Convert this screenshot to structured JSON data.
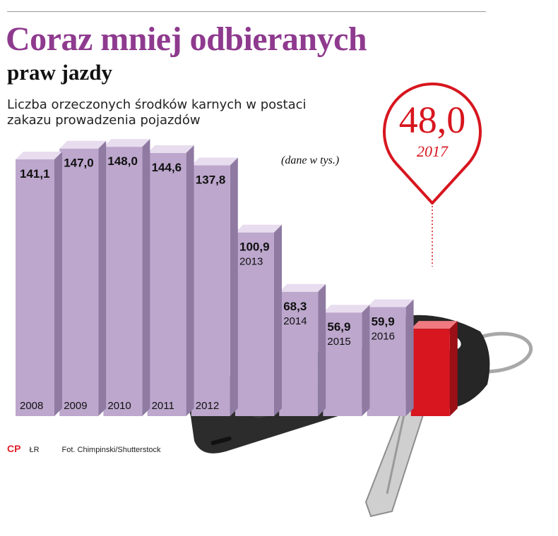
{
  "header": {
    "title": "Coraz mniej odbieranych",
    "subtitle": "praw jazdy",
    "description": "Liczba orzeczonych środków karnych w postaci zakazu prowadzenia pojazdów",
    "unit_note": "(dane w tys.)"
  },
  "highlight": {
    "value": "48,0",
    "year": "2017",
    "color": "#d7161f"
  },
  "footer": {
    "logo": "CP",
    "author": "ŁR",
    "photo_credit": "Fot. Chimpinski/Shutterstock"
  },
  "colors": {
    "bar_front": "#bda7cd",
    "bar_top": "#e8ddef",
    "bar_side": "#8f7aa2",
    "highlight": "#d7161f",
    "title": "#8e3a8e"
  },
  "chart_data": {
    "type": "bar",
    "categories": [
      "2008",
      "2009",
      "2010",
      "2011",
      "2012",
      "2013",
      "2014",
      "2015",
      "2016",
      "2017"
    ],
    "values": [
      141.1,
      147.0,
      148.0,
      144.6,
      137.8,
      100.9,
      68.3,
      56.9,
      59.9,
      48.0
    ],
    "value_labels": [
      "141,1",
      "147,0",
      "148,0",
      "144,6",
      "137,8",
      "100,9",
      "68,3",
      "56,9",
      "59,9",
      ""
    ],
    "year_labels": [
      "2008",
      "2009",
      "2010",
      "2011",
      "2012",
      "2013",
      "2014",
      "2015",
      "2016",
      ""
    ],
    "highlight_index": 9,
    "title": "Coraz mniej odbieranych praw jazdy",
    "xlabel": "",
    "ylabel": "",
    "grid": false
  }
}
